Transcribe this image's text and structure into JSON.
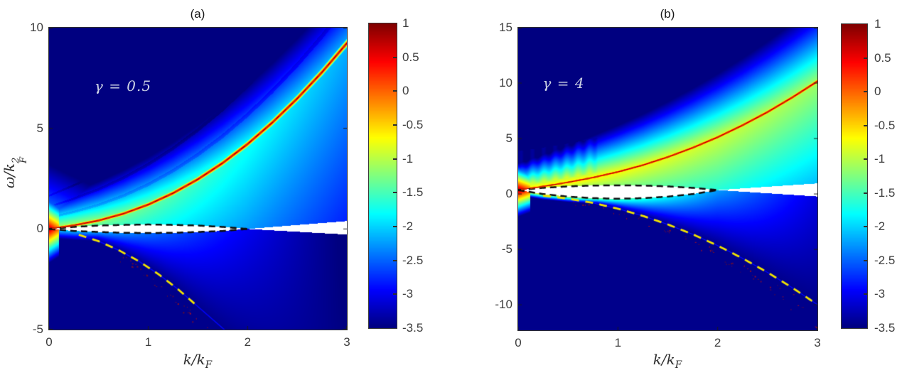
{
  "figure": {
    "background": "#ffffff"
  },
  "chart_data": {
    "type": "heatmap",
    "description": "Two log-scale spectral-function heatmaps A(k, omega) for interaction strengths gamma=0.5 and gamma=4, jet colormap, with dashed dispersion curves and white forbidden regions",
    "colormap": "jet",
    "color_scale": {
      "min": -3.5,
      "max": 1,
      "tick_values": [
        1,
        0.5,
        0,
        -0.5,
        -1,
        -1.5,
        -2,
        -2.5,
        -3,
        -3.5
      ],
      "tick_labels": [
        "1",
        "0.5",
        "0",
        "-0.5",
        "-1",
        "-1.5",
        "-2",
        "-2.5",
        "-3",
        "-3.5"
      ]
    },
    "curve_colors": {
      "particle": "#d42a00",
      "hole": "#f2e300",
      "continuum": "#0d0d0d"
    },
    "panels": [
      {
        "id": "a",
        "title": "(a)",
        "annotation": "γ = 0.5",
        "xlabel": "k/k_F",
        "ylabel": "ω/k_F^2",
        "xlim": [
          0,
          3
        ],
        "ylim": [
          -5,
          10
        ],
        "xtick_values": [
          0,
          1,
          2,
          3
        ],
        "xtick_labels": [
          "0",
          "1",
          "2",
          "3"
        ],
        "ytick_values": [
          10,
          5,
          0,
          -5
        ],
        "ytick_labels": [
          "10",
          "5",
          "0",
          "-5"
        ],
        "curves": {
          "particle_dispersion": {
            "style": "red-dashed",
            "points": [
              [
                0,
                0
              ],
              [
                0.25,
                0.18
              ],
              [
                0.5,
                0.42
              ],
              [
                0.75,
                0.76
              ],
              [
                1,
                1.21
              ],
              [
                1.25,
                1.78
              ],
              [
                1.5,
                2.47
              ],
              [
                1.75,
                3.28
              ],
              [
                2,
                4.22
              ],
              [
                2.25,
                5.29
              ],
              [
                2.5,
                6.48
              ],
              [
                2.75,
                7.79
              ],
              [
                3,
                9.23
              ]
            ]
          },
          "hole_dispersion": {
            "style": "yellow-dashed",
            "points": [
              [
                0.3,
                -0.29
              ],
              [
                0.5,
                -0.61
              ],
              [
                0.7,
                -1.05
              ],
              [
                0.9,
                -1.59
              ],
              [
                1.1,
                -2.24
              ],
              [
                1.3,
                -3.0
              ],
              [
                1.5,
                -3.86
              ]
            ]
          },
          "continuum_upper": {
            "style": "black-dashed",
            "points": [
              [
                0,
                0
              ],
              [
                0.25,
                0.1
              ],
              [
                0.5,
                0.17
              ],
              [
                0.75,
                0.2
              ],
              [
                1,
                0.22
              ],
              [
                1.25,
                0.2
              ],
              [
                1.5,
                0.17
              ],
              [
                1.75,
                0.1
              ],
              [
                2,
                0
              ]
            ]
          },
          "continuum_lower": {
            "style": "black-dashed",
            "points": [
              [
                0,
                0
              ],
              [
                0.25,
                -0.1
              ],
              [
                0.5,
                -0.15
              ],
              [
                0.75,
                -0.19
              ],
              [
                1,
                -0.2
              ],
              [
                1.25,
                -0.19
              ],
              [
                1.5,
                -0.15
              ],
              [
                1.75,
                -0.1
              ],
              [
                2,
                0
              ]
            ]
          }
        },
        "white_fan": {
          "k0": 2,
          "base": 0,
          "upper_slope": 0.39,
          "lower_slope": -0.28
        },
        "shading": {
          "core_w0": 0.05,
          "core_w1": 0.02,
          "core_fall": 1.5,
          "fill_b0": -1.15,
          "fill_b1": -0.55,
          "fill_r0": -0.95,
          "fill_r1": -0.4,
          "above_s0": 0.55,
          "above_s1": 0.55,
          "floor": [
            -1.9,
            0.5,
            1.2
          ],
          "hole_n0": -1.9,
          "hole_n1": -0.55,
          "hole_minspan": 0.45,
          "trace_level": -2.85,
          "trace_w": 0.1,
          "arcs": true,
          "left": [
            0.8,
            2.5,
            8,
            0.1,
            0
          ],
          "dots": {
            "seed": 7,
            "n": 48,
            "kmin": 0.7,
            "kspan": 1.2,
            "scale": 1.18,
            "jit": 0.3
          }
        }
      },
      {
        "id": "b",
        "title": "(b)",
        "annotation": "γ = 4",
        "xlabel": "k/k_F",
        "ylabel": "",
        "xlim": [
          0,
          3
        ],
        "ylim": [
          -12.3,
          15
        ],
        "xtick_values": [
          0,
          1,
          2,
          3
        ],
        "xtick_labels": [
          "0",
          "1",
          "2",
          "3"
        ],
        "ytick_values": [
          15,
          10,
          5,
          0,
          -5,
          -10
        ],
        "ytick_labels": [
          "15",
          "10",
          "5",
          "0",
          "-5",
          "-10"
        ],
        "curves": {
          "particle_dispersion": {
            "style": "red-dashed",
            "points": [
              [
                0,
                0.35
              ],
              [
                0.25,
                0.68
              ],
              [
                0.5,
                1.05
              ],
              [
                0.75,
                1.48
              ],
              [
                1,
                1.99
              ],
              [
                1.25,
                2.6
              ],
              [
                1.5,
                3.33
              ],
              [
                1.75,
                4.17
              ],
              [
                2,
                5.12
              ],
              [
                2.25,
                6.2
              ],
              [
                2.5,
                7.39
              ],
              [
                2.75,
                8.72
              ],
              [
                3,
                10.16
              ]
            ]
          },
          "hole_dispersion": {
            "style": "yellow-dashed",
            "points": [
              [
                0.25,
                -0.15
              ],
              [
                0.5,
                -0.42
              ],
              [
                0.75,
                -0.81
              ],
              [
                1,
                -1.33
              ],
              [
                1.25,
                -1.98
              ],
              [
                1.5,
                -2.75
              ],
              [
                1.75,
                -3.64
              ],
              [
                2,
                -4.66
              ],
              [
                2.25,
                -5.81
              ],
              [
                2.5,
                -7.08
              ],
              [
                2.75,
                -8.47
              ],
              [
                2.95,
                -9.68
              ]
            ]
          },
          "continuum_upper": {
            "style": "black-dashed",
            "points": [
              [
                0,
                0.35
              ],
              [
                0.25,
                0.55
              ],
              [
                0.5,
                0.68
              ],
              [
                0.75,
                0.76
              ],
              [
                1,
                0.78
              ],
              [
                1.25,
                0.76
              ],
              [
                1.5,
                0.68
              ],
              [
                1.75,
                0.55
              ],
              [
                2,
                0.35
              ]
            ]
          },
          "continuum_lower": {
            "style": "black-dashed",
            "points": [
              [
                0,
                0.35
              ],
              [
                0.25,
                -0.01
              ],
              [
                0.5,
                -0.24
              ],
              [
                0.75,
                -0.38
              ],
              [
                1,
                -0.43
              ],
              [
                1.25,
                -0.38
              ],
              [
                1.5,
                -0.24
              ],
              [
                1.75,
                -0.01
              ],
              [
                2,
                0.35
              ]
            ]
          }
        },
        "white_fan": {
          "k0": 2,
          "base": 0.35,
          "upper_slope": 0.6,
          "lower_slope": -0.58
        },
        "shading": {
          "core_w0": 0.06,
          "core_w1": 0.02,
          "core_fall": 1.4,
          "fill_b0": -0.75,
          "fill_b1": -0.45,
          "fill_r0": -0.5,
          "fill_r1": -0.2,
          "above_s0": 0.8,
          "above_s1": 0.7,
          "hole_n0": -0.55,
          "hole_n1": -0.85,
          "hole_minspan": 0.5,
          "trace_level": -2.8,
          "trace_w": 0.12,
          "stripes": true,
          "left": [
            0.9,
            1.8,
            6,
            0.12,
            0.35
          ],
          "dots": {
            "seed": 11,
            "n": 60,
            "kmin": 0.5,
            "kspan": 2.5,
            "scale": 1.13,
            "jit": 0.45
          }
        }
      }
    ]
  }
}
